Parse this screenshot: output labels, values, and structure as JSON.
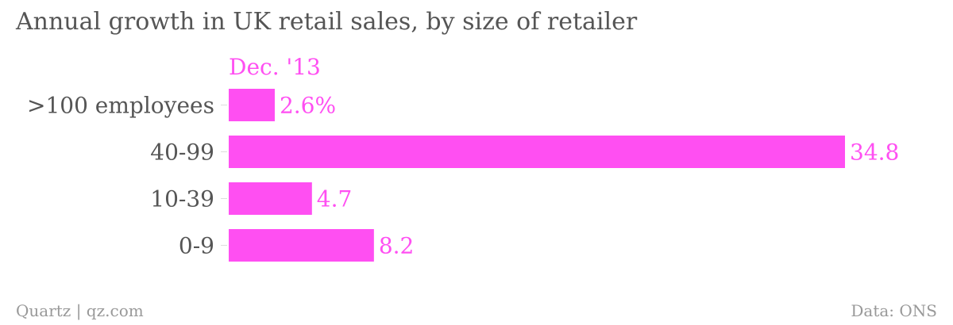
{
  "chart_data": {
    "type": "bar",
    "orientation": "horizontal",
    "title": "Annual growth in UK retail sales, by size of retailer",
    "categories": [
      ">100 employees",
      "40-99",
      "10-39",
      "0-9"
    ],
    "series": [
      {
        "name": "Dec. '13",
        "values": [
          2.6,
          34.8,
          4.7,
          8.2
        ],
        "value_labels": [
          "2.6%",
          "34.8",
          "4.7",
          "8.2"
        ]
      }
    ],
    "xlim": [
      0,
      34.8
    ],
    "grid": false,
    "colors": {
      "bar": "#ff4ff2",
      "title": "#555555",
      "category_label": "#555555",
      "footer": "#999999",
      "tick": "#dddddd"
    }
  },
  "footer": {
    "source_left": "Quartz | qz.com",
    "source_right": "Data: ONS"
  }
}
